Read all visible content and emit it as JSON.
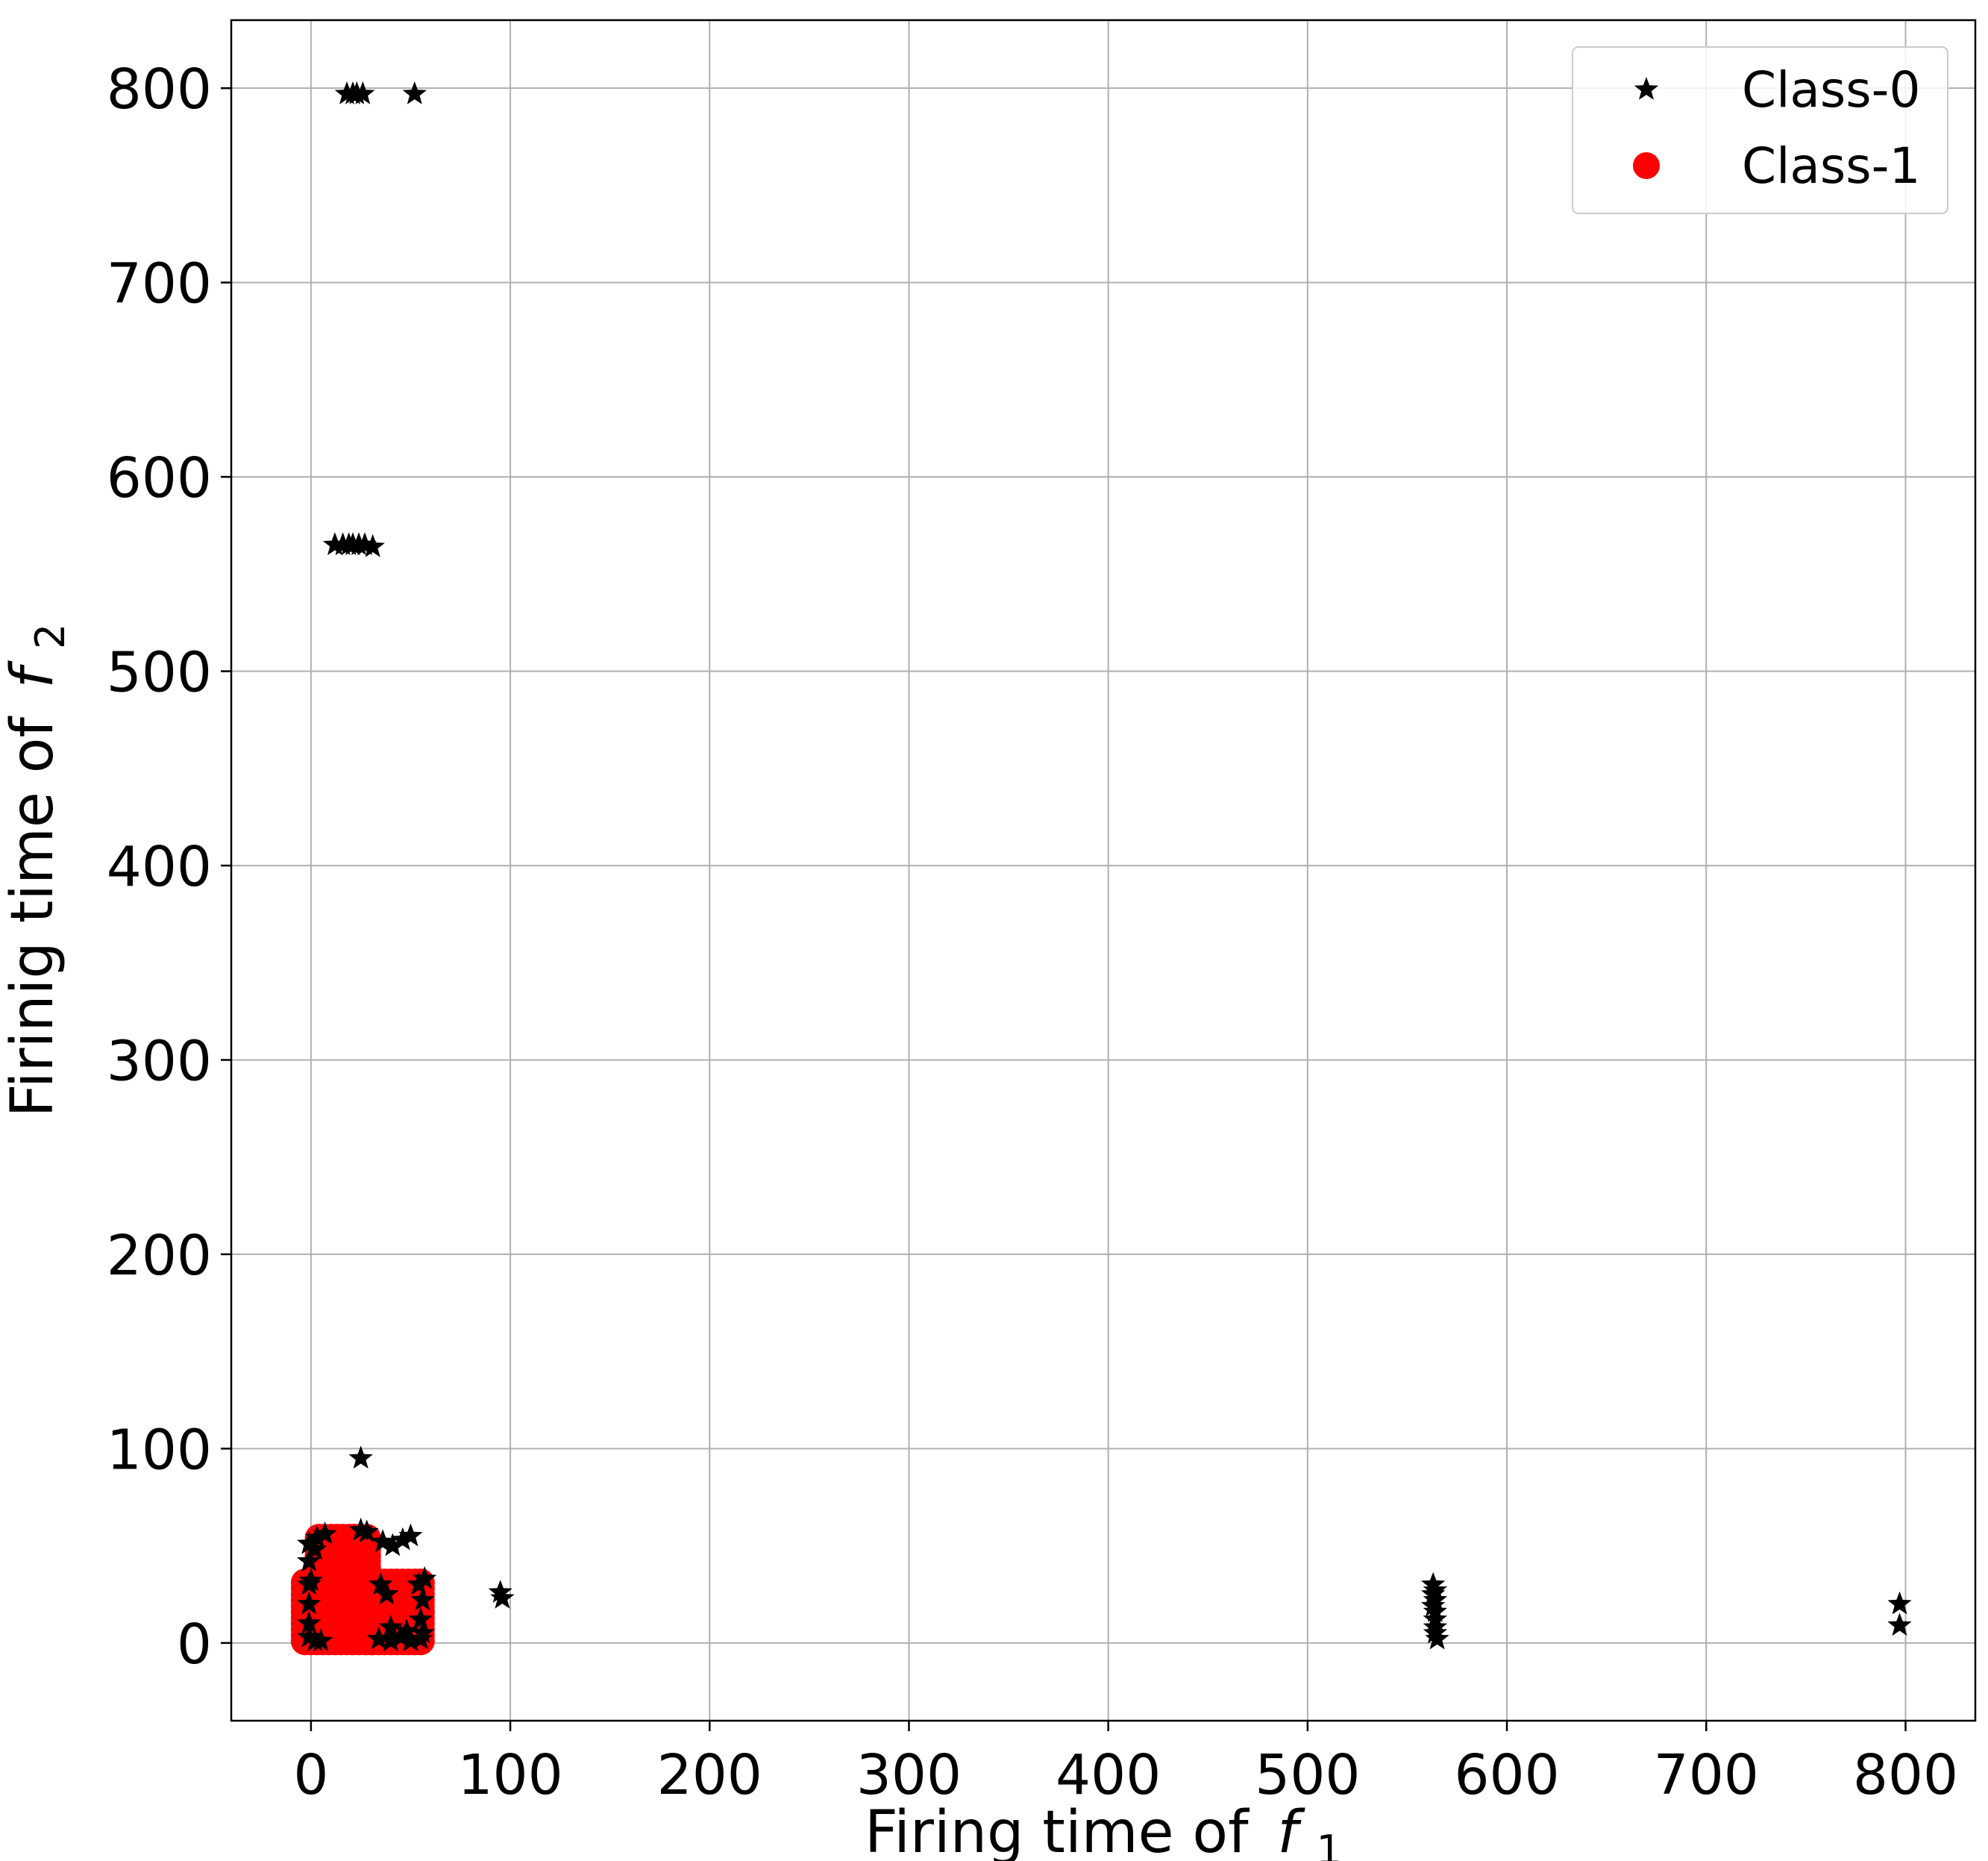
{
  "chart_data": {
    "type": "scatter",
    "xlabel": "Firing time of",
    "xlabel_var": "f",
    "xlabel_sub": "1",
    "ylabel": "Firinig time of",
    "ylabel_var": "f",
    "ylabel_sub": "2",
    "xlim": [
      -40,
      835
    ],
    "ylim": [
      -40,
      835
    ],
    "xticks": [
      0,
      100,
      200,
      300,
      400,
      500,
      600,
      700,
      800
    ],
    "yticks": [
      0,
      100,
      200,
      300,
      400,
      500,
      600,
      700,
      800
    ],
    "grid": true,
    "legend_position": "top-right",
    "series": [
      {
        "name": "Class-0",
        "marker": "star",
        "color": "#000000",
        "points": [
          [
            18,
            797
          ],
          [
            21,
            797
          ],
          [
            23,
            797
          ],
          [
            26,
            797
          ],
          [
            52,
            797
          ],
          [
            12,
            565
          ],
          [
            16,
            565
          ],
          [
            19,
            565
          ],
          [
            21,
            565
          ],
          [
            24,
            565
          ],
          [
            27,
            565
          ],
          [
            31,
            564
          ],
          [
            25,
            95
          ],
          [
            -1,
            51
          ],
          [
            3,
            54
          ],
          [
            7,
            56
          ],
          [
            -1,
            42
          ],
          [
            0,
            32
          ],
          [
            2,
            48
          ],
          [
            46,
            53
          ],
          [
            50,
            55
          ],
          [
            36,
            52
          ],
          [
            41,
            50
          ],
          [
            34,
            2
          ],
          [
            40,
            1
          ],
          [
            45,
            3
          ],
          [
            50,
            1
          ],
          [
            55,
            2
          ],
          [
            40,
            8
          ],
          [
            48,
            6
          ],
          [
            54,
            30
          ],
          [
            57,
            33
          ],
          [
            56,
            22
          ],
          [
            55,
            12
          ],
          [
            56,
            5
          ],
          [
            -1,
            30
          ],
          [
            -1,
            20
          ],
          [
            -1,
            10
          ],
          [
            -1,
            3
          ],
          [
            2,
            1
          ],
          [
            5,
            1
          ],
          [
            28,
            57
          ],
          [
            25,
            58
          ],
          [
            35,
            30
          ],
          [
            38,
            25
          ],
          [
            95,
            26
          ],
          [
            96,
            23
          ],
          [
            563,
            30
          ],
          [
            564,
            27
          ],
          [
            563,
            25
          ],
          [
            564,
            22
          ],
          [
            563,
            19
          ],
          [
            564,
            16
          ],
          [
            564,
            12
          ],
          [
            564,
            8
          ],
          [
            564,
            5
          ],
          [
            565,
            2
          ],
          [
            797,
            20
          ],
          [
            797,
            9
          ]
        ]
      },
      {
        "name": "Class-1",
        "marker": "circle",
        "color": "#ff0000"
      }
    ]
  }
}
